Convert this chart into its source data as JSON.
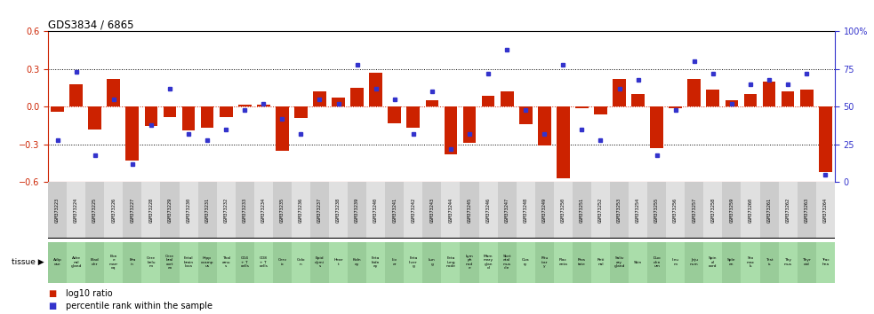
{
  "title": "GDS3834 / 6865",
  "gsm_ids": [
    "GSM373223",
    "GSM373224",
    "GSM373225",
    "GSM373226",
    "GSM373227",
    "GSM373228",
    "GSM373229",
    "GSM373230",
    "GSM373231",
    "GSM373232",
    "GSM373233",
    "GSM373234",
    "GSM373235",
    "GSM373236",
    "GSM373237",
    "GSM373238",
    "GSM373239",
    "GSM373240",
    "GSM373241",
    "GSM373242",
    "GSM373243",
    "GSM373244",
    "GSM373245",
    "GSM373246",
    "GSM373247",
    "GSM373248",
    "GSM373249",
    "GSM373250",
    "GSM373251",
    "GSM373252",
    "GSM373253",
    "GSM373254",
    "GSM373255",
    "GSM373256",
    "GSM373257",
    "GSM373258",
    "GSM373259",
    "GSM373260",
    "GSM373261",
    "GSM373262",
    "GSM373263",
    "GSM373264"
  ],
  "tissue_labels": [
    "Adip\nose",
    "Adre\nnal\ngland",
    "Blad\nder",
    "Bon\ne\nmarr\noq",
    "Bra\nin",
    "Cere\nbelu\nm",
    "Cere\nbral\ncort\nex",
    "Fetal\nbrain\nloca",
    "Hipp\nocamp\nus",
    "Thal\namu\ns",
    "CD4\n+ T\ncells",
    "CD8\n+ T\ncells",
    "Cerv\nix",
    "Colo\nn",
    "Epid\ndymi\ns",
    "Hear\nt",
    "Kidn\ney",
    "Feta\nkidn\ney",
    "Liv\ner",
    "Feta\nliver\ng",
    "Lun\ng",
    "Feta\nlung\nnode",
    "Lym\nph\nnod\ne",
    "Mam\nmary\nglan\nd",
    "Sket\netal\nmus\ncle",
    "Ova\nry",
    "Pitu\nitar\ny",
    "Plac\nenta",
    "Pros\ntate",
    "Reti\nnal",
    "Saliv\nary\ngland",
    "Skin",
    "Duo\nden\num",
    "Ileu\nm",
    "Jeju\nnum",
    "Spin\nal\ncord",
    "Sple\nen",
    "Sto\nmac\nls",
    "Test\nis",
    "Thy\nmus",
    "Thyr\noid",
    "Trac\nhea"
  ],
  "log10_ratio": [
    -0.04,
    0.18,
    -0.18,
    0.22,
    -0.43,
    -0.15,
    -0.08,
    -0.19,
    -0.17,
    -0.08,
    0.02,
    0.02,
    -0.35,
    -0.09,
    0.12,
    0.07,
    0.15,
    0.27,
    -0.13,
    -0.17,
    0.05,
    -0.38,
    -0.29,
    0.09,
    0.12,
    -0.14,
    -0.31,
    -0.57,
    -0.01,
    -0.06,
    0.22,
    0.1,
    -0.33,
    -0.01,
    0.22,
    0.14,
    0.05,
    0.1,
    0.2,
    0.12,
    0.14,
    -0.52
  ],
  "percentile_rank": [
    28,
    73,
    18,
    55,
    12,
    38,
    62,
    32,
    28,
    35,
    48,
    52,
    42,
    32,
    55,
    52,
    78,
    62,
    55,
    32,
    60,
    22,
    32,
    72,
    88,
    48,
    32,
    78,
    35,
    28,
    62,
    68,
    18,
    48,
    80,
    72,
    52,
    65,
    68,
    65,
    72,
    5
  ],
  "bar_color": "#cc2200",
  "dot_color": "#3333cc",
  "ylim_left": [
    -0.6,
    0.6
  ],
  "ylim_right": [
    0,
    100
  ],
  "yticks_left": [
    -0.6,
    -0.3,
    0.0,
    0.3,
    0.6
  ],
  "yticks_right": [
    0,
    25,
    50,
    75,
    100
  ],
  "ytick_labels_right": [
    "0",
    "25",
    "50",
    "75",
    "100%"
  ],
  "left_axis_color": "#cc2200",
  "right_axis_color": "#3333cc",
  "tissue_bg_even": "#99cc99",
  "tissue_bg_odd": "#aaddaa",
  "gsm_bg_even": "#cccccc",
  "gsm_bg_odd": "#e0e0e0",
  "tissue_row_label": "tissue"
}
